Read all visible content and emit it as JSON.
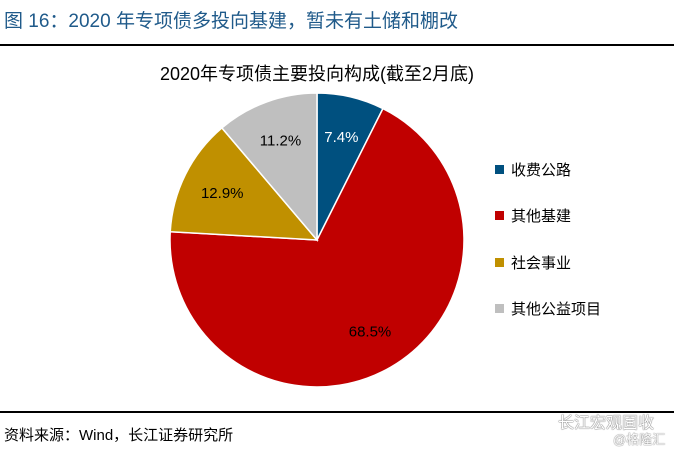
{
  "figure_title": "图 16：2020 年专项债多投向基建，暂未有土储和棚改",
  "source": "资料来源：Wind，长江证券研究所",
  "watermark": {
    "line1": "长江宏观固收",
    "line2": "@格隆汇"
  },
  "chart_data": {
    "type": "pie",
    "title": "2020年专项债主要投向构成(截至2月底)",
    "start": "12 o'clock, clockwise",
    "legend_position": "right",
    "slices": [
      {
        "name": "收费公路",
        "value": 7.4,
        "label": "7.4%",
        "color": "#00507f",
        "label_color": "#ffffff"
      },
      {
        "name": "其他基建",
        "value": 68.5,
        "label": "68.5%",
        "color": "#c00000",
        "label_color": "#000000"
      },
      {
        "name": "社会事业",
        "value": 12.9,
        "label": "12.9%",
        "color": "#c09000",
        "label_color": "#000000"
      },
      {
        "name": "其他公益项目",
        "value": 11.2,
        "label": "11.2%",
        "color": "#bfbfbf",
        "label_color": "#000000"
      }
    ]
  }
}
